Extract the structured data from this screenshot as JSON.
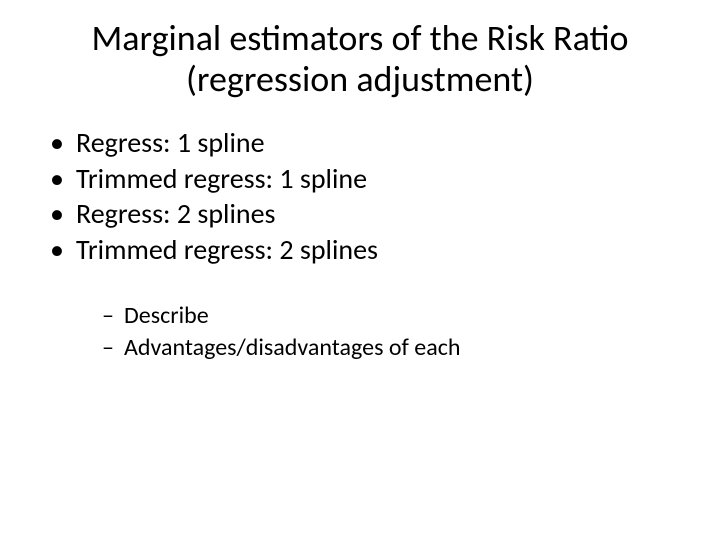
{
  "slide": {
    "background_color": "#ffffff",
    "text_color": "#000000",
    "title": {
      "line1": "Marginal estimators of the Risk Ratio",
      "line2": "(regression adjustment)",
      "fontsize": 36,
      "font_weight": 400,
      "align": "center"
    },
    "main_bullets": {
      "fontsize": 28,
      "bullet_glyph": "•",
      "items": [
        "Regress: 1 spline",
        "Trimmed regress: 1 spline",
        "Regress: 2 splines",
        "Trimmed regress: 2 splines"
      ]
    },
    "sub_bullets": {
      "fontsize": 24,
      "bullet_glyph": "–",
      "items": [
        "Describe",
        "Advantages/disadvantages of each"
      ]
    }
  }
}
